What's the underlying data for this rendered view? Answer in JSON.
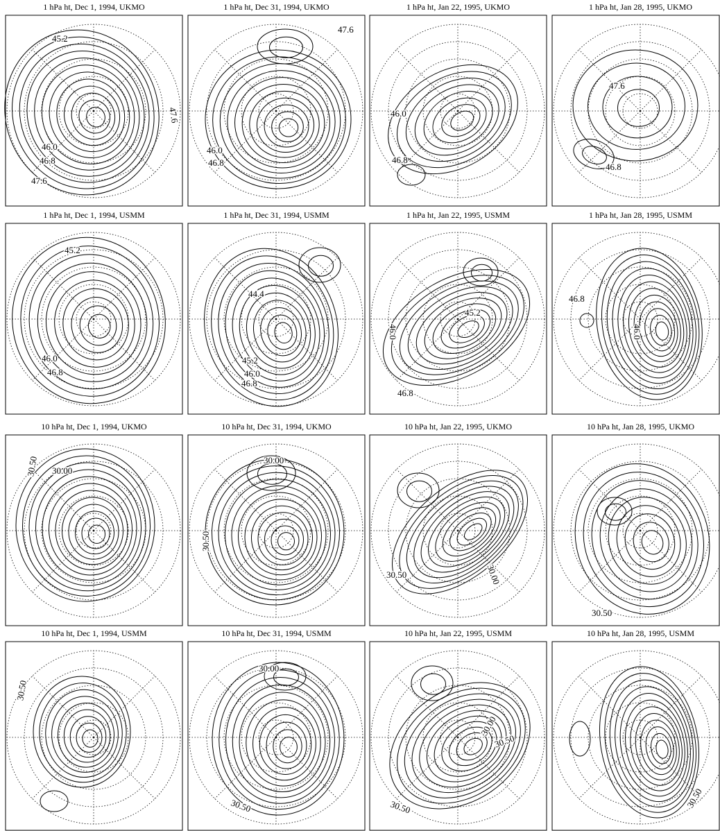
{
  "panels": [
    {
      "title": "1 hPa ht, Dec  1, 1994, UKMO",
      "labels": [
        "45.2",
        "46.0",
        "46.8",
        "47.6",
        "47.6"
      ]
    },
    {
      "title": "1 hPa ht, Dec 31, 1994, UKMO",
      "labels": [
        "47.6",
        "46.0",
        "46.8"
      ]
    },
    {
      "title": "1 hPa ht, Jan 22, 1995, UKMO",
      "labels": [
        "46.0",
        "46.8"
      ]
    },
    {
      "title": "1 hPa ht, Jan 28, 1995, UKMO",
      "labels": [
        "47.6",
        "46.8"
      ]
    },
    {
      "title": "1 hPa ht, Dec  1, 1994, USMM",
      "labels": [
        "45.2",
        "46.0",
        "46.8"
      ]
    },
    {
      "title": "1 hPa ht, Dec 31, 1994, USMM",
      "labels": [
        "44.4",
        "45.2",
        "46.0",
        "46.8"
      ]
    },
    {
      "title": "1 hPa ht, Jan 22, 1995, USMM",
      "labels": [
        "46.0",
        "45.2",
        "46.8"
      ]
    },
    {
      "title": "1 hPa ht, Jan 28, 1995, USMM",
      "labels": [
        "46.8",
        "46.0"
      ]
    },
    {
      "title": "10 hPa ht, Dec  1, 1994, UKMO",
      "labels": [
        "30.50",
        "30.00"
      ]
    },
    {
      "title": "10 hPa ht, Dec 31, 1994, UKMO",
      "labels": [
        "30.00",
        "30.50"
      ]
    },
    {
      "title": "10 hPa ht, Jan 22, 1995, UKMO",
      "labels": [
        "30.50",
        "30.00"
      ]
    },
    {
      "title": "10 hPa ht, Jan 28, 1995, UKMO",
      "labels": [
        "30.50"
      ]
    },
    {
      "title": "10 hPa ht, Dec  1, 1994, USMM",
      "labels": [
        "30.50"
      ]
    },
    {
      "title": "10 hPa ht, Dec 31, 1994, USMM",
      "labels": [
        "30.00",
        "30.50"
      ]
    },
    {
      "title": "10 hPa ht, Jan 22, 1995, USMM",
      "labels": [
        "30.00",
        "30.50",
        "30.50"
      ]
    },
    {
      "title": "10 hPa ht, Jan 28, 1995, USMM",
      "labels": [
        "30.50"
      ]
    }
  ]
}
